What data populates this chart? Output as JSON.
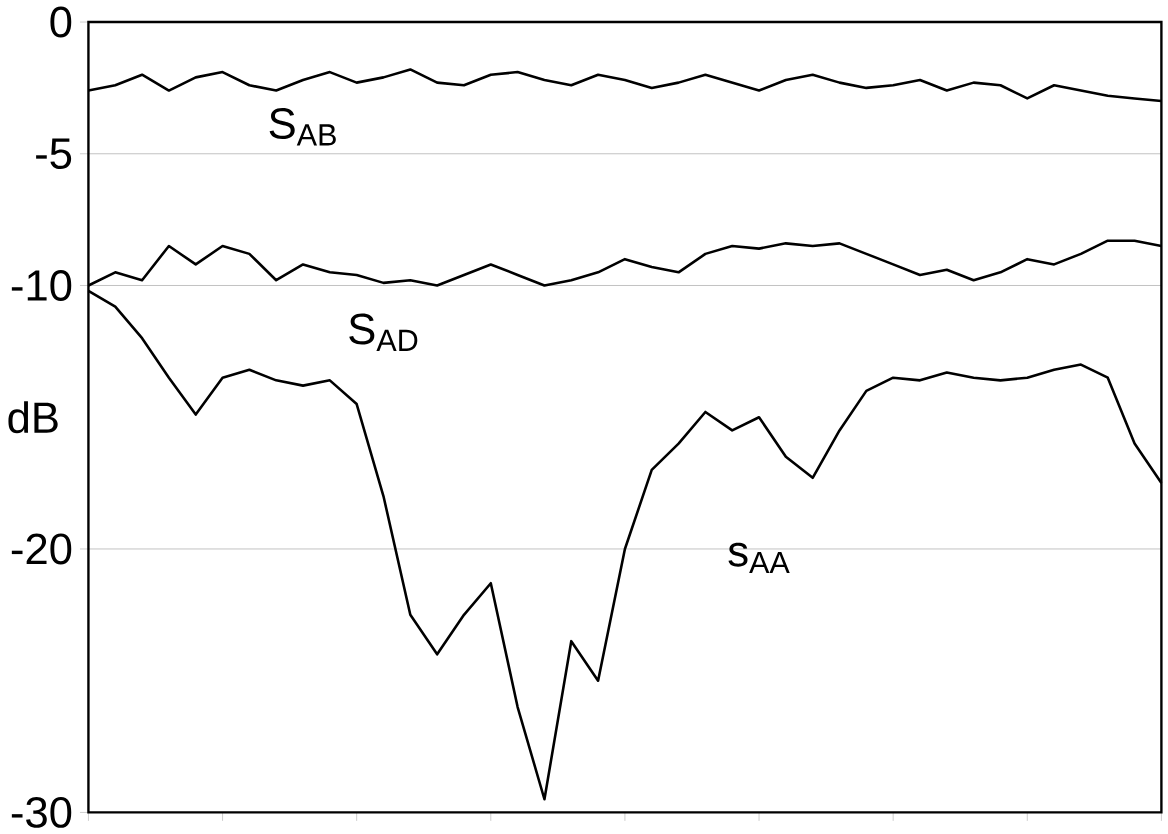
{
  "chart_data": {
    "type": "line",
    "ylabel": "dB",
    "categories": [
      null,
      null,
      null,
      null,
      null,
      null,
      null,
      null,
      null,
      null,
      null,
      null,
      null,
      null,
      null,
      null,
      null,
      null,
      null,
      null,
      null,
      null,
      null,
      null,
      null,
      null,
      null,
      null,
      null,
      null,
      null,
      null,
      null,
      null,
      null,
      null,
      null,
      null,
      null,
      null,
      null
    ],
    "ylim": [
      -30,
      0
    ],
    "yticks": [
      0,
      -5,
      -10,
      -20,
      -30
    ],
    "grid": "y",
    "tick_labels": "y",
    "marker": "none",
    "line_style": "solid",
    "series": [
      {
        "name": "S$_{AB}$",
        "color": "#000000",
        "values": [
          -2.6,
          -2.4,
          -2.0,
          -2.6,
          -2.1,
          -1.9,
          -2.4,
          -2.6,
          -2.2,
          -1.9,
          -2.3,
          -2.1,
          -1.8,
          -2.3,
          -2.4,
          -2.0,
          -1.9,
          -2.2,
          -2.4,
          -2.0,
          -2.2,
          -2.5,
          -2.3,
          -2.0,
          -2.3,
          -2.6,
          -2.2,
          -2.0,
          -2.3,
          -2.5,
          -2.4,
          -2.2,
          -2.6,
          -2.3,
          -2.4,
          -2.9,
          -2.4,
          -2.6,
          -2.8,
          -2.9,
          -3.0
        ]
      },
      {
        "name": "S$_{AD}$",
        "color": "#000000",
        "values": [
          -10,
          -9.5,
          -9.8,
          -8.5,
          -9.2,
          -8.5,
          -8.8,
          -9.8,
          -9.2,
          -9.5,
          -9.6,
          -9.9,
          -9.8,
          -10,
          -9.6,
          -9.2,
          -9.6,
          -10,
          -9.8,
          -9.5,
          -9,
          -9.3,
          -9.5,
          -8.8,
          -8.5,
          -8.6,
          -8.4,
          -8.5,
          -8.4,
          -8.8,
          -9.2,
          -9.6,
          -9.4,
          -9.8,
          -9.5,
          -9,
          -9.2,
          -8.8,
          -8.3,
          -8.3,
          -8.5
        ]
      },
      {
        "name": "s$_{AA}$",
        "color": "#000000",
        "values": [
          -10.2,
          -10.8,
          -12,
          -13.5,
          -14.9,
          -13.5,
          -13.2,
          -13.6,
          -13.8,
          -13.6,
          -14.5,
          -18,
          -22.5,
          -24,
          -22.5,
          -21.3,
          -26,
          -29.5,
          -23.5,
          -25,
          -20,
          -17,
          -16,
          -14.8,
          -15.5,
          -15,
          -16.5,
          -17.3,
          -15.5,
          -14,
          -13.5,
          -13.6,
          -13.3,
          -13.5,
          -13.6,
          -13.5,
          -13.2,
          -13,
          -13.5,
          -16,
          -17.5
        ]
      }
    ]
  }
}
